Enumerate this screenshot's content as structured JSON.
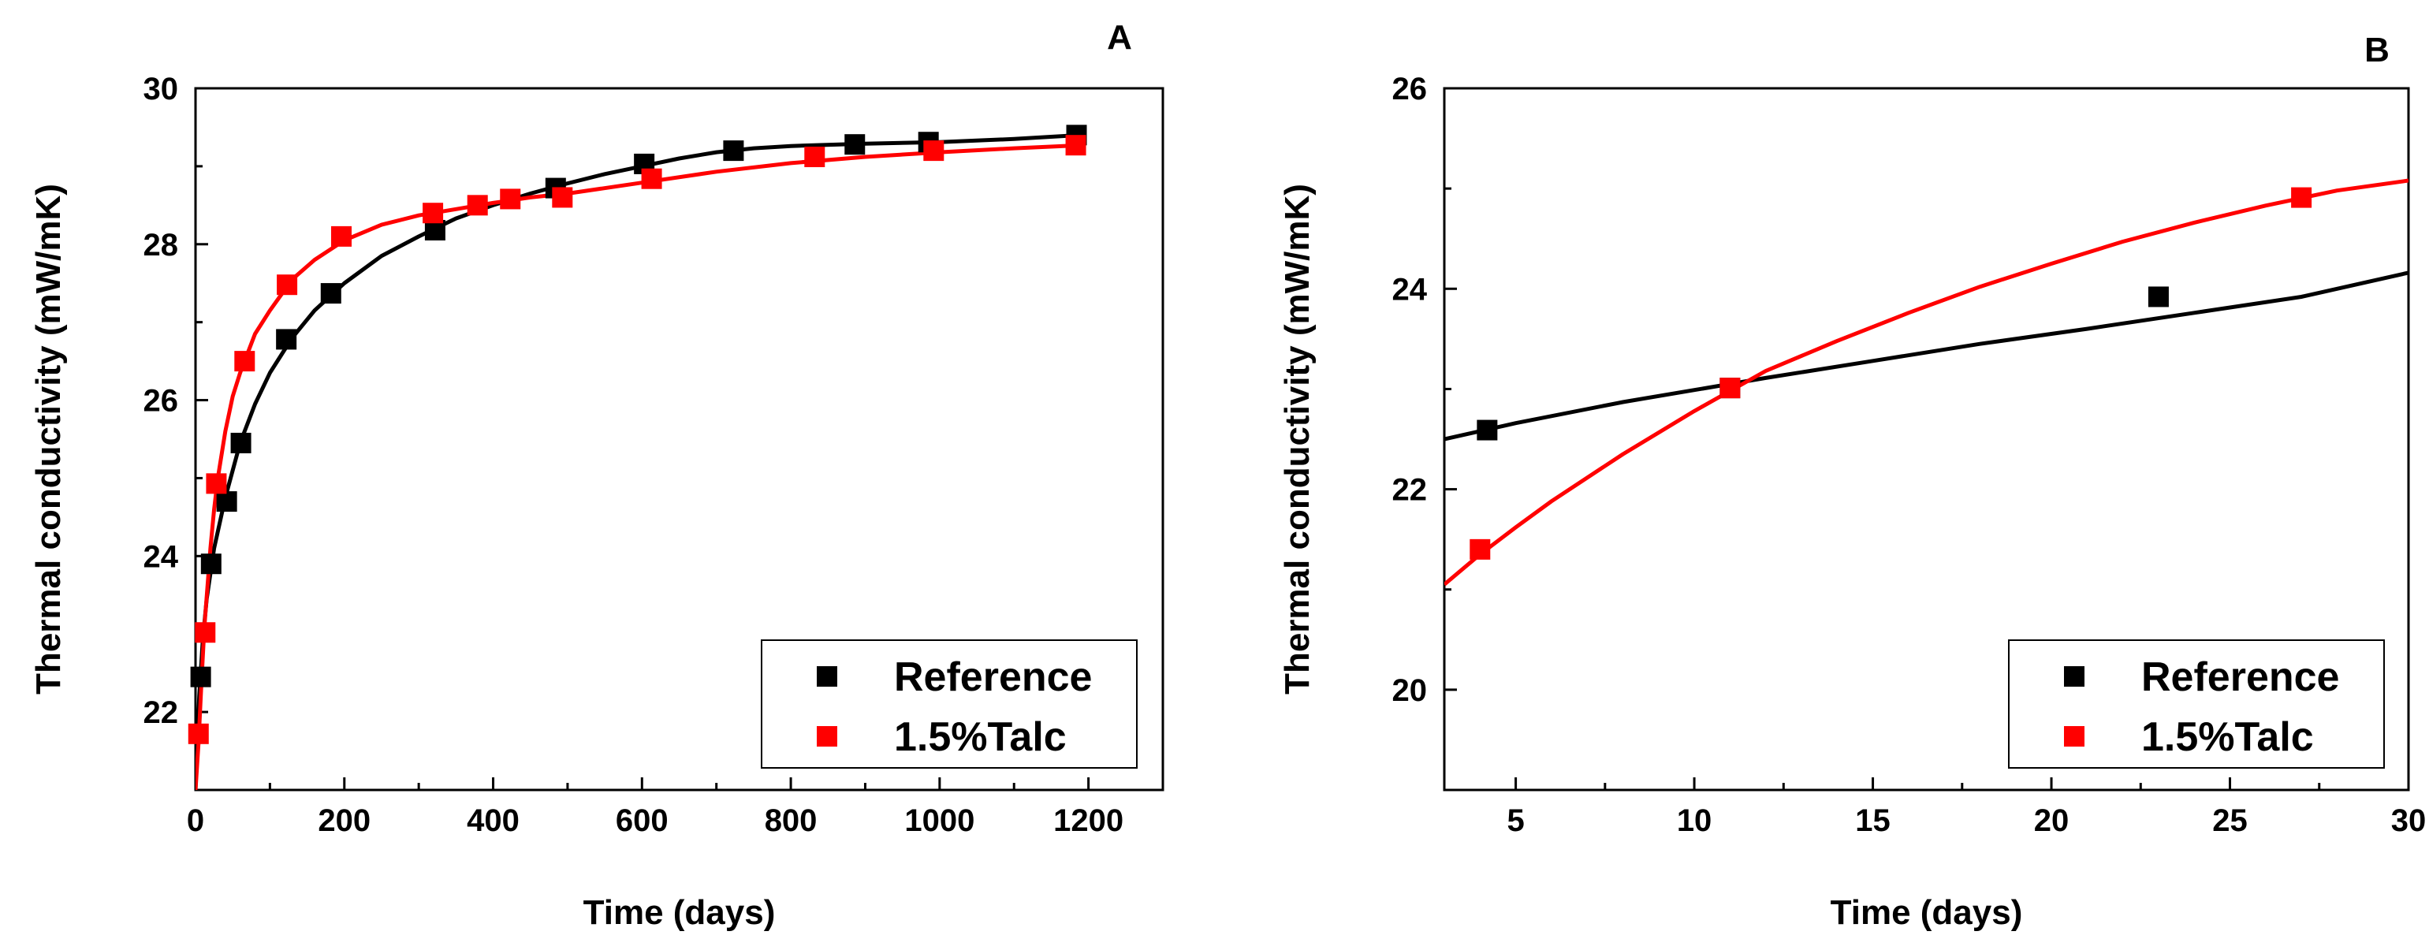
{
  "chart_data": [
    {
      "panel": "A",
      "type": "scatter",
      "title": "",
      "xlabel": "Time (days)",
      "ylabel": "Thermal conductivity (mW/mK)",
      "xlim": [
        0,
        1300
      ],
      "ylim": [
        21,
        30
      ],
      "xticks": [
        0,
        200,
        400,
        600,
        800,
        1000,
        1200
      ],
      "yticks": [
        22,
        24,
        26,
        28,
        30
      ],
      "legend_position": "bottom-right",
      "series": [
        {
          "name": "Reference",
          "color": "#000000",
          "points": [
            [
              7,
              22.45
            ],
            [
              21,
              23.9
            ],
            [
              42,
              24.7
            ],
            [
              61,
              25.45
            ],
            [
              122,
              26.78
            ],
            [
              182,
              27.37
            ],
            [
              322,
              28.18
            ],
            [
              484,
              28.72
            ],
            [
              603,
              29.03
            ],
            [
              723,
              29.2
            ],
            [
              886,
              29.28
            ],
            [
              985,
              29.31
            ],
            [
              1184,
              29.4
            ]
          ],
          "fit": [
            [
              0,
              21.0
            ],
            [
              5,
              22.2
            ],
            [
              10,
              22.95
            ],
            [
              15,
              23.45
            ],
            [
              25,
              24.1
            ],
            [
              40,
              24.75
            ],
            [
              60,
              25.45
            ],
            [
              80,
              25.95
            ],
            [
              100,
              26.35
            ],
            [
              130,
              26.8
            ],
            [
              160,
              27.15
            ],
            [
              200,
              27.5
            ],
            [
              250,
              27.85
            ],
            [
              300,
              28.1
            ],
            [
              350,
              28.33
            ],
            [
              400,
              28.5
            ],
            [
              450,
              28.65
            ],
            [
              500,
              28.78
            ],
            [
              550,
              28.9
            ],
            [
              600,
              29.0
            ],
            [
              650,
              29.1
            ],
            [
              700,
              29.18
            ],
            [
              750,
              29.23
            ],
            [
              800,
              29.26
            ],
            [
              900,
              29.29
            ],
            [
              1000,
              29.31
            ],
            [
              1100,
              29.35
            ],
            [
              1190,
              29.4
            ]
          ]
        },
        {
          "name": "1.5%Talc",
          "color": "#ff0000",
          "points": [
            [
              4,
              21.72
            ],
            [
              13,
              23.02
            ],
            [
              28,
              24.93
            ],
            [
              66,
              26.5
            ],
            [
              123,
              27.48
            ],
            [
              196,
              28.1
            ],
            [
              319,
              28.4
            ],
            [
              379,
              28.5
            ],
            [
              423,
              28.58
            ],
            [
              493,
              28.6
            ],
            [
              613,
              28.84
            ],
            [
              832,
              29.12
            ],
            [
              992,
              29.2
            ],
            [
              1183,
              29.27
            ]
          ],
          "fit": [
            [
              0,
              21.0
            ],
            [
              4,
              21.6
            ],
            [
              8,
              22.4
            ],
            [
              12,
              23.1
            ],
            [
              16,
              23.6
            ],
            [
              20,
              24.1
            ],
            [
              25,
              24.6
            ],
            [
              30,
              25.0
            ],
            [
              40,
              25.6
            ],
            [
              50,
              26.05
            ],
            [
              60,
              26.35
            ],
            [
              80,
              26.85
            ],
            [
              100,
              27.15
            ],
            [
              130,
              27.55
            ],
            [
              160,
              27.8
            ],
            [
              200,
              28.05
            ],
            [
              250,
              28.25
            ],
            [
              300,
              28.37
            ],
            [
              350,
              28.45
            ],
            [
              400,
              28.53
            ],
            [
              450,
              28.6
            ],
            [
              500,
              28.65
            ],
            [
              600,
              28.79
            ],
            [
              700,
              28.93
            ],
            [
              800,
              29.04
            ],
            [
              900,
              29.12
            ],
            [
              1000,
              29.18
            ],
            [
              1100,
              29.23
            ],
            [
              1190,
              29.27
            ]
          ]
        }
      ]
    },
    {
      "panel": "B",
      "type": "scatter",
      "title": "",
      "xlabel": "Time (days)",
      "ylabel": "Thermal conductivity (mW/mK)",
      "xlim": [
        3,
        30
      ],
      "ylim": [
        19,
        26
      ],
      "xticks": [
        5,
        10,
        15,
        20,
        25,
        30
      ],
      "yticks": [
        20,
        22,
        24,
        26
      ],
      "legend_position": "bottom-right",
      "series": [
        {
          "name": "Reference",
          "color": "#000000",
          "points": [
            [
              4.2,
              22.59
            ],
            [
              11,
              23.01
            ],
            [
              23,
              23.92
            ]
          ],
          "fit": [
            [
              3,
              22.5
            ],
            [
              5,
              22.66
            ],
            [
              8,
              22.87
            ],
            [
              10,
              22.99
            ],
            [
              12,
              23.11
            ],
            [
              15,
              23.28
            ],
            [
              18,
              23.45
            ],
            [
              21,
              23.6
            ],
            [
              24,
              23.76
            ],
            [
              27,
              23.92
            ],
            [
              30,
              24.16
            ]
          ]
        },
        {
          "name": "1.5%Talc",
          "color": "#ff0000",
          "points": [
            [
              4,
              21.4
            ],
            [
              11,
              23.01
            ],
            [
              27,
              24.91
            ]
          ],
          "fit": [
            [
              3,
              21.05
            ],
            [
              4,
              21.35
            ],
            [
              5,
              21.62
            ],
            [
              6,
              21.88
            ],
            [
              8,
              22.35
            ],
            [
              10,
              22.78
            ],
            [
              12,
              23.18
            ],
            [
              14,
              23.48
            ],
            [
              16,
              23.76
            ],
            [
              18,
              24.02
            ],
            [
              20,
              24.25
            ],
            [
              22,
              24.47
            ],
            [
              24,
              24.66
            ],
            [
              26,
              24.83
            ],
            [
              28,
              24.98
            ],
            [
              30,
              25.08
            ]
          ]
        }
      ]
    }
  ]
}
